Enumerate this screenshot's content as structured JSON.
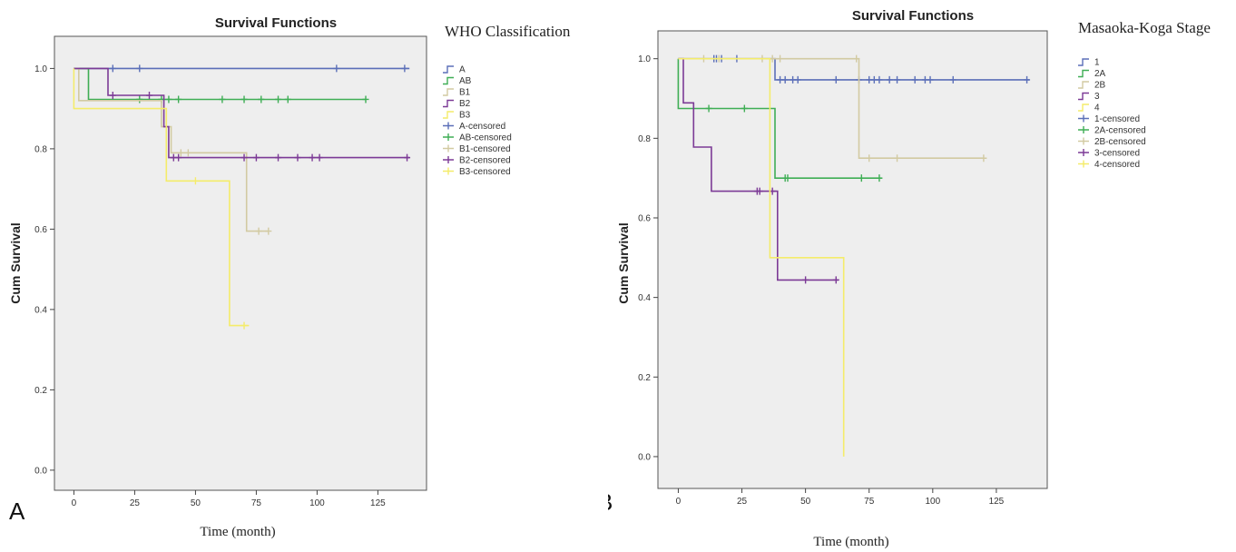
{
  "chart_data": [
    {
      "type": "line",
      "panel_label": "A",
      "title": "Survival Functions",
      "legend_title": "WHO Classification",
      "xlabel": "Time (month)",
      "ylabel": "Cum Survival",
      "xlim": [
        -8,
        145
      ],
      "ylim": [
        -0.05,
        1.08
      ],
      "xticks": [
        0,
        25,
        50,
        75,
        100,
        125
      ],
      "yticks": [
        0.0,
        0.2,
        0.4,
        0.6,
        0.8,
        1.0
      ],
      "legend": [
        "A",
        "AB",
        "B1",
        "B2",
        "B3",
        "A-censored",
        "AB-censored",
        "B1-censored",
        "B2-censored",
        "B3-censored"
      ],
      "series": [
        {
          "name": "A",
          "color": "#5b6fb8",
          "steps": [
            [
              0,
              1.0
            ],
            [
              138,
              1.0
            ]
          ],
          "censored": [
            [
              16,
              1.0
            ],
            [
              27,
              1.0
            ],
            [
              108,
              1.0
            ],
            [
              136,
              1.0
            ]
          ]
        },
        {
          "name": "AB",
          "color": "#3fae55",
          "steps": [
            [
              0,
              1.0
            ],
            [
              6,
              1.0
            ],
            [
              6,
              0.923
            ],
            [
              120,
              0.923
            ]
          ],
          "censored": [
            [
              27,
              0.923
            ],
            [
              36,
              0.923
            ],
            [
              39,
              0.923
            ],
            [
              43,
              0.923
            ],
            [
              61,
              0.923
            ],
            [
              70,
              0.923
            ],
            [
              77,
              0.923
            ],
            [
              84,
              0.923
            ],
            [
              88,
              0.923
            ],
            [
              120,
              0.923
            ]
          ]
        },
        {
          "name": "B1",
          "color": "#d2caa2",
          "steps": [
            [
              0,
              1.0
            ],
            [
              2,
              1.0
            ],
            [
              2,
              0.92
            ],
            [
              36,
              0.92
            ],
            [
              36,
              0.855
            ],
            [
              40,
              0.855
            ],
            [
              40,
              0.79
            ],
            [
              71,
              0.79
            ],
            [
              71,
              0.595
            ],
            [
              80,
              0.595
            ]
          ],
          "censored": [
            [
              44,
              0.79
            ],
            [
              47,
              0.79
            ],
            [
              76,
              0.595
            ],
            [
              80,
              0.595
            ]
          ]
        },
        {
          "name": "B2",
          "color": "#7c3a96",
          "steps": [
            [
              0,
              1.0
            ],
            [
              14,
              1.0
            ],
            [
              14,
              0.933
            ],
            [
              37,
              0.933
            ],
            [
              37,
              0.855
            ],
            [
              39,
              0.855
            ],
            [
              39,
              0.778
            ],
            [
              138,
              0.778
            ]
          ],
          "censored": [
            [
              16,
              0.933
            ],
            [
              31,
              0.933
            ],
            [
              41,
              0.778
            ],
            [
              43,
              0.778
            ],
            [
              70,
              0.778
            ],
            [
              75,
              0.778
            ],
            [
              84,
              0.778
            ],
            [
              92,
              0.778
            ],
            [
              98,
              0.778
            ],
            [
              101,
              0.778
            ],
            [
              137,
              0.778
            ]
          ]
        },
        {
          "name": "B3",
          "color": "#f4ec6a",
          "steps": [
            [
              0,
              1.0
            ],
            [
              0,
              0.9
            ],
            [
              38,
              0.9
            ],
            [
              38,
              0.72
            ],
            [
              64,
              0.72
            ],
            [
              64,
              0.36
            ],
            [
              72,
              0.36
            ]
          ],
          "censored": [
            [
              50,
              0.72
            ],
            [
              70,
              0.36
            ]
          ]
        }
      ]
    },
    {
      "type": "line",
      "panel_label": "B",
      "title": "Survival Functions",
      "legend_title": "Masaoka-Koga Stage",
      "xlabel": "Time (month)",
      "ylabel": "Cum Survival",
      "xlim": [
        -8,
        145
      ],
      "ylim": [
        -0.08,
        1.07
      ],
      "xticks": [
        0,
        25,
        50,
        75,
        100,
        125
      ],
      "yticks": [
        0.0,
        0.2,
        0.4,
        0.6,
        0.8,
        1.0
      ],
      "legend": [
        "1",
        "2A",
        "2B",
        "3",
        "4",
        "1-censored",
        "2A-censored",
        "2B-censored",
        "3-censored",
        "4-censored"
      ],
      "series": [
        {
          "name": "1",
          "color": "#5b6fb8",
          "steps": [
            [
              0,
              1.0
            ],
            [
              38,
              1.0
            ],
            [
              38,
              0.947
            ],
            [
              138,
              0.947
            ]
          ],
          "censored": [
            [
              14,
              1.0
            ],
            [
              15,
              1.0
            ],
            [
              17,
              1.0
            ],
            [
              23,
              1.0
            ],
            [
              40,
              0.947
            ],
            [
              42,
              0.947
            ],
            [
              45,
              0.947
            ],
            [
              47,
              0.947
            ],
            [
              62,
              0.947
            ],
            [
              71,
              0.947
            ],
            [
              75,
              0.947
            ],
            [
              77,
              0.947
            ],
            [
              79,
              0.947
            ],
            [
              83,
              0.947
            ],
            [
              86,
              0.947
            ],
            [
              93,
              0.947
            ],
            [
              97,
              0.947
            ],
            [
              99,
              0.947
            ],
            [
              108,
              0.947
            ],
            [
              137,
              0.947
            ]
          ]
        },
        {
          "name": "2A",
          "color": "#3fae55",
          "steps": [
            [
              0,
              1.0
            ],
            [
              0,
              0.875
            ],
            [
              38,
              0.875
            ],
            [
              38,
              0.7
            ],
            [
              80,
              0.7
            ]
          ],
          "censored": [
            [
              12,
              0.875
            ],
            [
              26,
              0.875
            ],
            [
              42,
              0.7
            ],
            [
              43,
              0.7
            ],
            [
              72,
              0.7
            ],
            [
              79,
              0.7
            ]
          ]
        },
        {
          "name": "2B",
          "color": "#d2caa2",
          "steps": [
            [
              0,
              1.0
            ],
            [
              71,
              1.0
            ],
            [
              71,
              0.75
            ],
            [
              120,
              0.75
            ]
          ],
          "censored": [
            [
              10,
              1.0
            ],
            [
              16,
              1.0
            ],
            [
              33,
              1.0
            ],
            [
              37,
              1.0
            ],
            [
              40,
              1.0
            ],
            [
              70,
              1.0
            ],
            [
              75,
              0.75
            ],
            [
              86,
              0.75
            ],
            [
              120,
              0.75
            ]
          ]
        },
        {
          "name": "3",
          "color": "#7c3a96",
          "steps": [
            [
              0,
              1.0
            ],
            [
              2,
              1.0
            ],
            [
              2,
              0.889
            ],
            [
              6,
              0.889
            ],
            [
              6,
              0.778
            ],
            [
              13,
              0.778
            ],
            [
              13,
              0.667
            ],
            [
              39,
              0.667
            ],
            [
              39,
              0.444
            ],
            [
              63,
              0.444
            ]
          ],
          "censored": [
            [
              31,
              0.667
            ],
            [
              32,
              0.667
            ],
            [
              37,
              0.667
            ],
            [
              50,
              0.444
            ],
            [
              62,
              0.444
            ]
          ]
        },
        {
          "name": "4",
          "color": "#f4ec6a",
          "steps": [
            [
              0,
              1.0
            ],
            [
              36,
              1.0
            ],
            [
              36,
              0.5
            ],
            [
              65,
              0.5
            ],
            [
              65,
              0.0
            ]
          ],
          "censored": []
        }
      ]
    }
  ]
}
